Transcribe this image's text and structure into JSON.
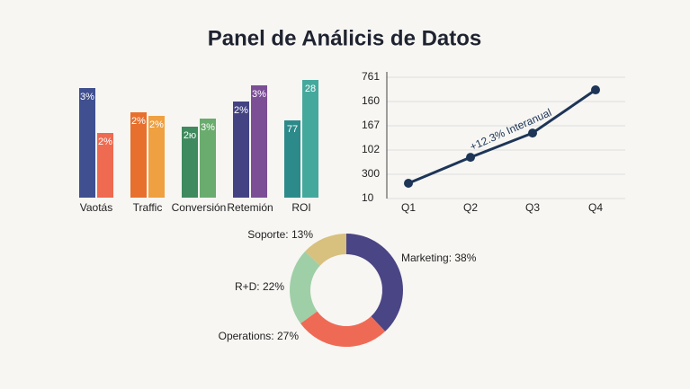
{
  "title": "Panel de Análicis de Datos",
  "chart_data": [
    {
      "type": "bar",
      "categories": [
        "Vaotás",
        "Traffic",
        "Conversión",
        "Retemión",
        "ROI"
      ],
      "ylim": [
        0,
        140
      ],
      "series": [
        {
          "colors": [
            "#3f4f8f",
            "#e8702e",
            "#3f8a5e",
            "#434384",
            "#2d8a8a"
          ],
          "values": [
            122,
            95,
            79,
            107,
            86
          ],
          "bar_labels": [
            "3%",
            "2%",
            "2ю",
            "2%",
            "77"
          ]
        },
        {
          "colors": [
            "#ee6a50",
            "#efa040",
            "#6aab6e",
            "#7b4e96",
            "#45a89d"
          ],
          "values": [
            72,
            91,
            88,
            125,
            131
          ],
          "bar_labels": [
            "2%",
            "2%",
            "3%",
            "3%",
            "28"
          ]
        }
      ]
    },
    {
      "type": "line",
      "categories": [
        "Q1",
        "Q2",
        "Q3",
        "Q4"
      ],
      "ylim": [
        0,
        5
      ],
      "yticks": [
        {
          "value": 0,
          "label": "10"
        },
        {
          "value": 1,
          "label": "300"
        },
        {
          "value": 2,
          "label": "102"
        },
        {
          "value": 3,
          "label": "167"
        },
        {
          "value": 4,
          "label": "160"
        },
        {
          "value": 5,
          "label": "761"
        }
      ],
      "grid": true,
      "color": "#1d3557",
      "values": [
        0.63,
        1.7,
        2.7,
        4.48
      ],
      "annotation": "+12.3% Interanual"
    },
    {
      "type": "pie",
      "colors": [
        "#4a4585",
        "#ef6a55",
        "#9fcfa6",
        "#d8c07f"
      ],
      "values": [
        38,
        27,
        22,
        13
      ],
      "value_labels": [
        "Marketing: 38%",
        "Operations: 27%",
        "R+D: 22%",
        "Soporte: 13%"
      ]
    }
  ]
}
